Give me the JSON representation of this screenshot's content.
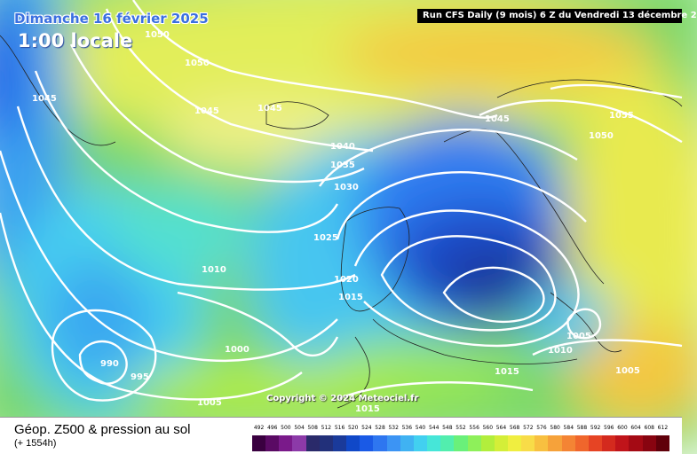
{
  "header": {
    "date": "Dimanche 16 février 2025",
    "time": "1:00 locale",
    "run": "Run CFS Daily (9 mois) 6 Z du Vendredi 13 décembre 2"
  },
  "copyright": "Copyright © 2024 Meteociel.fr",
  "footer": {
    "product": "Géop. Z500 & pression au sol",
    "lead_time": "(+ 1554h)"
  },
  "isobar_labels": [
    "1050",
    "1050",
    "1045",
    "1045",
    "1045",
    "1040",
    "1035",
    "1030",
    "1025",
    "1020",
    "1015",
    "1010",
    "1000",
    "990",
    "995",
    "1005",
    "1015",
    "1045",
    "1055",
    "1050",
    "1005",
    "1010",
    "1005",
    "1015"
  ],
  "color_scale": {
    "values": [
      "492",
      "496",
      "500",
      "504",
      "508",
      "512",
      "516",
      "520",
      "524",
      "528",
      "532",
      "536",
      "540",
      "544",
      "548",
      "552",
      "556",
      "560",
      "564",
      "568",
      "572",
      "576",
      "580",
      "584",
      "588",
      "592",
      "596",
      "600",
      "604",
      "608",
      "612"
    ],
    "colors": [
      "#3a0040",
      "#5a0a64",
      "#7a1a8a",
      "#8c3aa8",
      "#2a2a6a",
      "#22307a",
      "#1a3a9a",
      "#1048c8",
      "#1a5ae6",
      "#2e76f0",
      "#3c94f4",
      "#40b2f2",
      "#42d0f0",
      "#46e6d8",
      "#52eeae",
      "#6af07a",
      "#8ef05a",
      "#b2ee3c",
      "#d4ee38",
      "#f0ee40",
      "#f8dc48",
      "#f8c040",
      "#f6a23a",
      "#f48434",
      "#f0662c",
      "#e64424",
      "#d42a1e",
      "#c0141a",
      "#a40a14",
      "#880410",
      "#60000a"
    ]
  }
}
